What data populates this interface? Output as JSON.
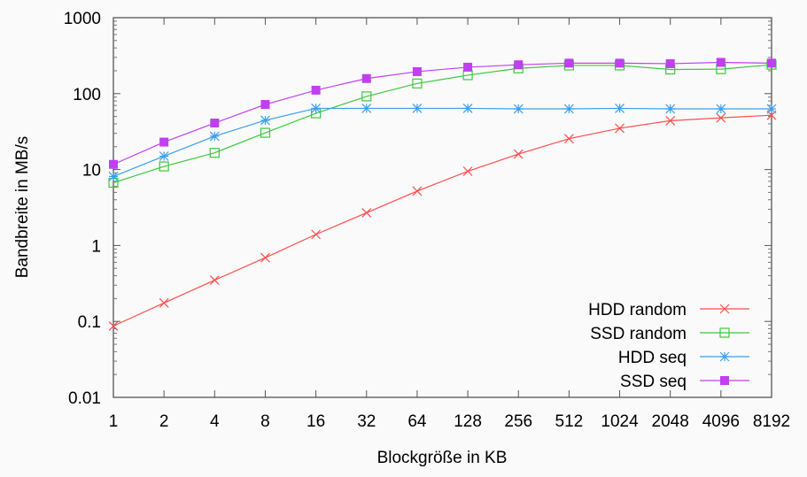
{
  "chart_data": {
    "type": "line",
    "title": "",
    "xlabel": "Blockgröße in KB",
    "ylabel": "Bandbreite in MB/s",
    "x_scale": "log2",
    "y_scale": "log10",
    "ylim": [
      0.01,
      1000
    ],
    "grid": false,
    "legend_position": "bottom-right",
    "x": [
      1,
      2,
      4,
      8,
      16,
      32,
      64,
      128,
      256,
      512,
      1024,
      2048,
      4096,
      8192
    ],
    "x_tick_labels": [
      "1",
      "2",
      "4",
      "8",
      "16",
      "32",
      "64",
      "128",
      "256",
      "512",
      "1024",
      "2048",
      "4096",
      "8192"
    ],
    "y_tick_labels": [
      "0.01",
      "0.1",
      "1",
      "10",
      "100",
      "1000"
    ],
    "y_ticks": [
      0.01,
      0.1,
      1,
      10,
      100,
      1000
    ],
    "series": [
      {
        "name": "HDD random",
        "color": "#ff4d4d",
        "marker": "x",
        "values": [
          0.087,
          0.175,
          0.35,
          0.69,
          1.4,
          2.7,
          5.2,
          9.5,
          16,
          25.5,
          35,
          44,
          48,
          52
        ]
      },
      {
        "name": "SSD random",
        "color": "#3cc83c",
        "marker": "open-square",
        "values": [
          6.7,
          11,
          16.6,
          30.5,
          55,
          92,
          136,
          175,
          215,
          235,
          235,
          208,
          210,
          240
        ]
      },
      {
        "name": "HDD seq",
        "color": "#3a9ff0",
        "marker": "asterisk",
        "values": [
          8.1,
          15,
          27.5,
          44.5,
          64,
          64,
          64,
          64,
          63,
          63,
          64,
          63,
          63,
          63
        ]
      },
      {
        "name": "SSD seq",
        "color": "#c03ff0",
        "marker": "filled-square",
        "values": [
          11.7,
          23,
          41,
          72,
          111,
          158,
          195,
          223,
          240,
          252,
          252,
          248,
          258,
          252
        ]
      }
    ]
  }
}
